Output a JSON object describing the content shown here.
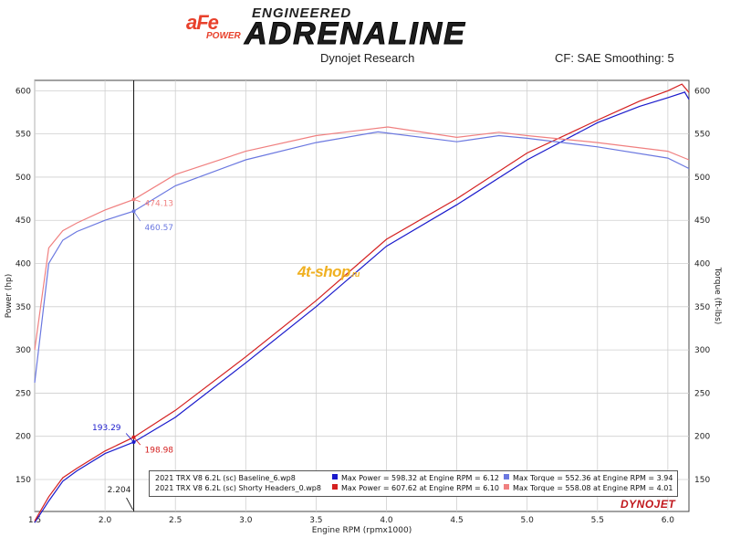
{
  "header": {
    "brand_top": "aFe",
    "brand_bottom": "POWER",
    "engineered": "ENGINEERED",
    "adrenaline": "ADRENALINE",
    "source": "Dynojet Research",
    "cf_smoothing": "CF: SAE Smoothing: 5"
  },
  "watermark": {
    "main": "4t-shop",
    "suffix": ".ru"
  },
  "dynojet_logo": "DYNOJET",
  "legend": {
    "rows": [
      {
        "file": "2021 TRX V8 6.2L (sc) Baseline_6.wp8",
        "power": "Max Power = 598.32 at Engine RPM = 6.12",
        "torque": "Max Torque = 552.36 at Engine RPM = 3.94",
        "power_color": "#1a1acc",
        "torque_color": "#6b78e0"
      },
      {
        "file": "2021 TRX V8 6.2L (sc) Shorty Headers_0.wp8",
        "power": "Max Power = 607.62 at Engine RPM = 6.10",
        "torque": "Max Torque = 558.08 at Engine RPM = 4.01",
        "power_color": "#d42020",
        "torque_color": "#f08080"
      }
    ]
  },
  "chart_data": {
    "type": "line",
    "xlabel": "Engine RPM (rpmx1000)",
    "ylabel": "Power (hp)",
    "y2label": "Torque (ft-lbs)",
    "xlim": [
      1.5,
      6.15
    ],
    "ylim": [
      113,
      612
    ],
    "y2lim": [
      113,
      612
    ],
    "xticks": [
      1.5,
      2.0,
      2.5,
      3.0,
      3.5,
      4.0,
      4.5,
      5.0,
      5.5,
      6.0
    ],
    "xtick_labels": [
      "1.5",
      "2.0",
      "2.5",
      "3.0",
      "3.5",
      "4.0",
      "4.5",
      "5.0",
      "5.5",
      "6.0"
    ],
    "yticks": [
      150,
      200,
      250,
      300,
      350,
      400,
      450,
      500,
      550,
      600
    ],
    "ytick_labels": [
      "150",
      "200",
      "250",
      "300",
      "350",
      "400",
      "450",
      "500",
      "550",
      "600"
    ],
    "grid": true,
    "cursor": {
      "x": 2.204,
      "label": "2.204"
    },
    "annotations": [
      {
        "text": "193.29",
        "x": 2.204,
        "y": 193.29,
        "color": "#1a1acc",
        "side": "left"
      },
      {
        "text": "198.98",
        "x": 2.204,
        "y": 198.98,
        "color": "#d42020",
        "side": "right"
      },
      {
        "text": "474.13",
        "x": 2.204,
        "y": 474.13,
        "color": "#f08080",
        "side": "right"
      },
      {
        "text": "460.57",
        "x": 2.204,
        "y": 460.57,
        "color": "#6b78e0",
        "side": "right"
      }
    ],
    "series": [
      {
        "color": "#1a1acc",
        "x": [
          1.5,
          1.6,
          1.7,
          1.8,
          2.0,
          2.204,
          2.5,
          3.0,
          3.5,
          4.0,
          4.5,
          5.0,
          5.5,
          5.8,
          6.0,
          6.12,
          6.15
        ],
        "values": [
          100,
          125,
          148,
          160,
          180,
          193.29,
          222,
          285,
          350,
          420,
          468,
          520,
          563,
          582,
          592,
          598.32,
          590
        ]
      },
      {
        "color": "#d42020",
        "x": [
          1.5,
          1.6,
          1.7,
          1.8,
          2.0,
          2.204,
          2.5,
          3.0,
          3.5,
          4.0,
          4.5,
          5.0,
          5.5,
          5.8,
          6.0,
          6.1,
          6.15
        ],
        "values": [
          102,
          130,
          152,
          163,
          183,
          198.98,
          230,
          292,
          357,
          428,
          475,
          528,
          566,
          588,
          600,
          607.62,
          598
        ]
      },
      {
        "color": "#6b78e0",
        "x": [
          1.5,
          1.6,
          1.7,
          1.8,
          2.0,
          2.204,
          2.5,
          3.0,
          3.5,
          3.94,
          4.5,
          4.8,
          5.0,
          5.5,
          6.0,
          6.15
        ],
        "values": [
          262,
          400,
          427,
          437,
          450,
          460.57,
          490,
          520,
          540,
          552.36,
          541,
          548,
          545,
          535,
          522,
          510
        ]
      },
      {
        "color": "#f08080",
        "x": [
          1.5,
          1.6,
          1.7,
          1.8,
          2.0,
          2.204,
          2.5,
          3.0,
          3.5,
          4.01,
          4.5,
          4.8,
          5.0,
          5.5,
          6.0,
          6.15
        ],
        "values": [
          300,
          418,
          438,
          447,
          462,
          474.13,
          503,
          530,
          548,
          558.08,
          546,
          552,
          548,
          540,
          530,
          520
        ]
      }
    ]
  }
}
